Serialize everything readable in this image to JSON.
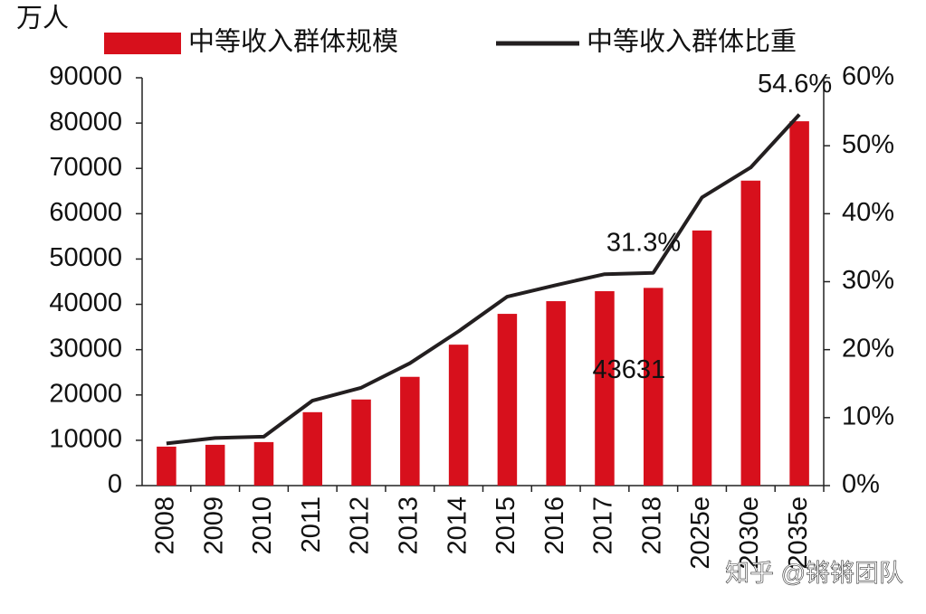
{
  "chart_data": {
    "type": "combo",
    "y_label": "万人",
    "categories": [
      "2008",
      "2009",
      "2010",
      "2011",
      "2012",
      "2013",
      "2014",
      "2015",
      "2016",
      "2017",
      "2018",
      "2025e",
      "2030e",
      "2035e"
    ],
    "series": [
      {
        "name": "中等收入群体规模",
        "type": "bar",
        "color": "#d7101c",
        "values": [
          8600,
          9000,
          9600,
          16200,
          19000,
          24000,
          31100,
          37900,
          40700,
          42900,
          43631,
          56300,
          67300,
          80400
        ],
        "value_labels": [
          null,
          null,
          null,
          null,
          null,
          null,
          null,
          null,
          null,
          null,
          "43631",
          null,
          null,
          null
        ]
      },
      {
        "name": "中等收入群体比重",
        "type": "line",
        "color": "#231f20",
        "axis": "y2",
        "values": [
          6.2,
          7.0,
          7.2,
          12.5,
          14.4,
          18.0,
          22.7,
          27.8,
          29.5,
          31.1,
          31.3,
          42.4,
          46.8,
          54.6
        ],
        "value_labels": [
          null,
          null,
          null,
          null,
          null,
          null,
          null,
          null,
          null,
          null,
          "31.3%",
          null,
          null,
          "54.6%"
        ]
      }
    ],
    "ylim": [
      0,
      90000
    ],
    "yticks": [
      0,
      10000,
      20000,
      30000,
      40000,
      50000,
      60000,
      70000,
      80000,
      90000
    ],
    "y2lim": [
      0,
      60
    ],
    "y2ticks": [
      {
        "value": 0,
        "label": "0%"
      },
      {
        "value": 10,
        "label": "10%"
      },
      {
        "value": 20,
        "label": "20%"
      },
      {
        "value": 30,
        "label": "30%"
      },
      {
        "value": 40,
        "label": "40%"
      },
      {
        "value": 50,
        "label": "50%"
      },
      {
        "value": 60,
        "label": "60%"
      }
    ],
    "legend": "top",
    "watermark": "知乎 @锵锵团队"
  }
}
